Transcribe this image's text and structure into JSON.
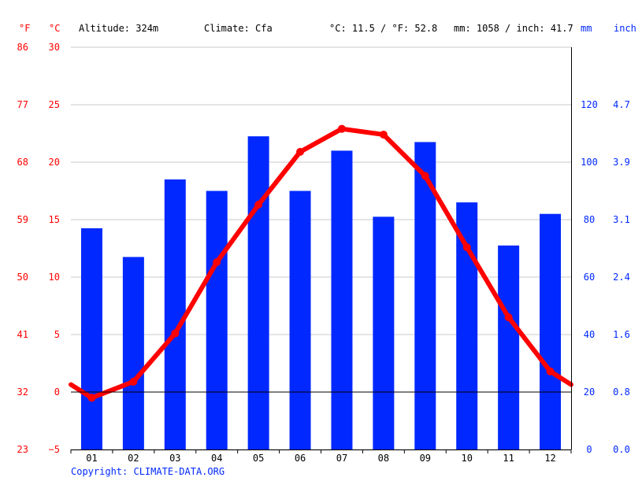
{
  "header": {
    "f_unit": "°F",
    "c_unit": "°C",
    "altitude": "Altitude: 324m",
    "climate": "Climate: Cfa",
    "avg_temp": "°C: 11.5 / °F: 52.8",
    "precip_total": "mm: 1058 / inch: 41.7",
    "mm_unit": "mm",
    "inch_unit": "inch"
  },
  "copyright": "Copyright: CLIMATE-DATA.ORG",
  "colors": {
    "temp": "#ff0000",
    "precip": "#0028ff"
  },
  "chart_data": {
    "type": "bar",
    "categories": [
      "01",
      "02",
      "03",
      "04",
      "05",
      "06",
      "07",
      "08",
      "09",
      "10",
      "11",
      "12"
    ],
    "series": [
      {
        "type": "bar",
        "axis": "right",
        "values": [
          77,
          67,
          94,
          90,
          109,
          90,
          104,
          81,
          107,
          86,
          71,
          82
        ]
      },
      {
        "type": "line",
        "axis": "left",
        "values": [
          -0.5,
          0.9,
          5.1,
          11.3,
          16.3,
          20.9,
          22.9,
          22.4,
          18.8,
          12.6,
          6.5,
          1.8
        ]
      }
    ],
    "left_axis": {
      "ticks_c": [
        30,
        25,
        20,
        15,
        10,
        5,
        0,
        -5
      ],
      "ticks_f": [
        "86",
        "77",
        "68",
        "59",
        "50",
        "41",
        "32",
        "23"
      ],
      "ylim": [
        -5,
        30
      ]
    },
    "right_axis": {
      "ticks_mm": [
        120,
        100,
        80,
        60,
        40,
        20,
        0
      ],
      "ticks_inch": [
        "4.7",
        "3.9",
        "3.1",
        "2.4",
        "1.6",
        "0.8",
        "0.0"
      ],
      "ylim": [
        0,
        140
      ]
    },
    "grid": true
  }
}
